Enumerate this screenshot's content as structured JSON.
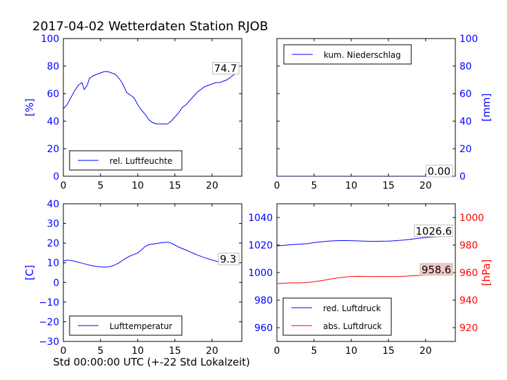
{
  "title": "2017-04-02 Wetterdaten Station RJOB",
  "xlabel": "Std 00:00:00 UTC (+-22 Std Lokalzeit)",
  "colors": {
    "blue": "#0000ff",
    "red": "#ff0000",
    "black": "#000000"
  },
  "chart_data": [
    {
      "type": "line",
      "panel": "top-left",
      "ylabel": "[%]",
      "ylabel_color": "#0000ff",
      "xlim": [
        0,
        24
      ],
      "ylim": [
        0,
        100
      ],
      "xticks": [
        0,
        5,
        10,
        15,
        20
      ],
      "yticks": [
        0,
        20,
        40,
        60,
        80,
        100
      ],
      "ytick_side": "left",
      "ytick_color": "#0000ff",
      "legend_position": "lower-left",
      "series": [
        {
          "name": "rel. Luftfeuchte",
          "color": "#0000ff",
          "x": [
            0,
            0.5,
            1,
            1.5,
            2,
            2.5,
            2.8,
            3.2,
            3.5,
            4,
            4.5,
            5,
            5.5,
            6,
            6.5,
            7,
            7.5,
            8,
            8.5,
            9,
            9.5,
            10,
            10.5,
            11,
            11.5,
            12,
            12.5,
            13,
            13.5,
            14,
            14.5,
            15,
            15.5,
            16,
            16.5,
            17,
            17.5,
            18,
            18.5,
            19,
            19.5,
            20,
            20.5,
            21,
            21.5,
            22,
            22.5,
            23,
            23.5
          ],
          "y": [
            49,
            52,
            57,
            62,
            66,
            68,
            63,
            66,
            71,
            73,
            74,
            75,
            76,
            76,
            75,
            74,
            71,
            67,
            61,
            59,
            57,
            52,
            48,
            45,
            41,
            39,
            38,
            38,
            38,
            38,
            40,
            43,
            46,
            50,
            52,
            55,
            58,
            61,
            63,
            65,
            66,
            67,
            68,
            68,
            69,
            70,
            72,
            74,
            74.7
          ]
        }
      ],
      "annotation": "74.7"
    },
    {
      "type": "line",
      "panel": "top-right",
      "ylabel": "[mm]",
      "ylabel_color": "#0000ff",
      "xlim": [
        0,
        24
      ],
      "ylim": [
        0,
        100
      ],
      "xticks": [
        0,
        5,
        10,
        15,
        20
      ],
      "yticks": [
        0,
        20,
        40,
        60,
        80,
        100
      ],
      "ytick_side": "right",
      "ytick_color": "#0000ff",
      "legend_position": "upper-left",
      "series": [
        {
          "name": "kum. Niederschlag",
          "color": "#0000ff",
          "x": [
            0,
            24
          ],
          "y": [
            0,
            0
          ]
        }
      ],
      "annotation": "0.00"
    },
    {
      "type": "line",
      "panel": "bottom-left",
      "ylabel": "[C]",
      "ylabel_color": "#0000ff",
      "xlim": [
        0,
        24
      ],
      "ylim": [
        -30,
        40
      ],
      "xticks": [
        0,
        5,
        10,
        15,
        20
      ],
      "yticks": [
        -30,
        -20,
        -10,
        0,
        10,
        20,
        30,
        40
      ],
      "ytick_side": "left",
      "ytick_color": "#0000ff",
      "legend_position": "lower-left",
      "series": [
        {
          "name": "Lufttemperatur",
          "color": "#0000ff",
          "x": [
            0,
            0.5,
            1,
            1.5,
            2,
            2.5,
            3,
            3.5,
            4,
            4.5,
            5,
            5.5,
            6,
            6.5,
            7,
            7.5,
            8,
            8.5,
            9,
            9.5,
            10,
            10.5,
            11,
            11.5,
            12,
            12.5,
            13,
            13.5,
            14,
            14.5,
            15,
            15.5,
            16,
            16.5,
            17,
            17.5,
            18,
            18.5,
            19,
            19.5,
            20,
            20.5,
            21,
            21.5,
            22,
            22.5,
            23,
            23.5
          ],
          "y": [
            11,
            11.3,
            11.2,
            10.8,
            10.3,
            9.8,
            9.3,
            8.8,
            8.4,
            8.1,
            7.9,
            7.8,
            7.9,
            8.3,
            9,
            10,
            11.3,
            12.5,
            13.5,
            14.2,
            15,
            16.5,
            18.3,
            19.2,
            19.5,
            19.8,
            20.1,
            20.3,
            20.5,
            20,
            19,
            18,
            17.2,
            16.5,
            15.6,
            14.8,
            14,
            13.3,
            12.6,
            12,
            11.4,
            10.9,
            10.4,
            10.1,
            9.8,
            9.6,
            9.4,
            9.3
          ]
        }
      ],
      "annotation": "9.3"
    },
    {
      "type": "line",
      "panel": "bottom-right",
      "ylabel": "[hPa]",
      "ylabel_color": "#ff0000",
      "xlim": [
        0,
        24
      ],
      "ylim_left": [
        950,
        1050
      ],
      "ylim_right": [
        910,
        1010
      ],
      "xticks": [
        0,
        5,
        10,
        15,
        20
      ],
      "yticks_left": [
        960,
        980,
        1000,
        1020,
        1040
      ],
      "yticks_right": [
        920,
        940,
        960,
        980,
        1000
      ],
      "ytick_left_color": "#0000ff",
      "ytick_right_color": "#ff0000",
      "legend_position": "lower-left",
      "series": [
        {
          "name": "red. Luftdruck",
          "color": "#0000ff",
          "axis": "left",
          "x": [
            0,
            1,
            2,
            3,
            4,
            5,
            6,
            7,
            8,
            9,
            10,
            11,
            12,
            13,
            14,
            15,
            16,
            17,
            18,
            19,
            20,
            21,
            22,
            23,
            23.5
          ],
          "y": [
            1019.5,
            1019.8,
            1020.3,
            1020.6,
            1021,
            1021.8,
            1022.4,
            1022.9,
            1023.2,
            1023.3,
            1023.2,
            1023,
            1022.8,
            1022.7,
            1022.8,
            1022.9,
            1023.2,
            1023.6,
            1024.2,
            1024.9,
            1025.5,
            1025.9,
            1026.2,
            1026.5,
            1026.6
          ]
        },
        {
          "name": "abs. Luftdruck",
          "color": "#ff0000",
          "axis": "right",
          "x": [
            0,
            1,
            2,
            3,
            4,
            5,
            6,
            7,
            8,
            9,
            10,
            11,
            12,
            13,
            14,
            15,
            16,
            17,
            18,
            19,
            20,
            21,
            22,
            23,
            23.5
          ],
          "y": [
            952,
            952.3,
            952.6,
            952.5,
            952.8,
            953.4,
            954.2,
            955.1,
            956,
            956.7,
            957.2,
            957.3,
            957.2,
            957.1,
            957.2,
            957.1,
            957.1,
            957.3,
            957.6,
            957.9,
            958.2,
            958.4,
            958.5,
            958.6,
            958.6
          ]
        }
      ],
      "annotations": [
        "1026.6",
        "958.6"
      ]
    }
  ]
}
